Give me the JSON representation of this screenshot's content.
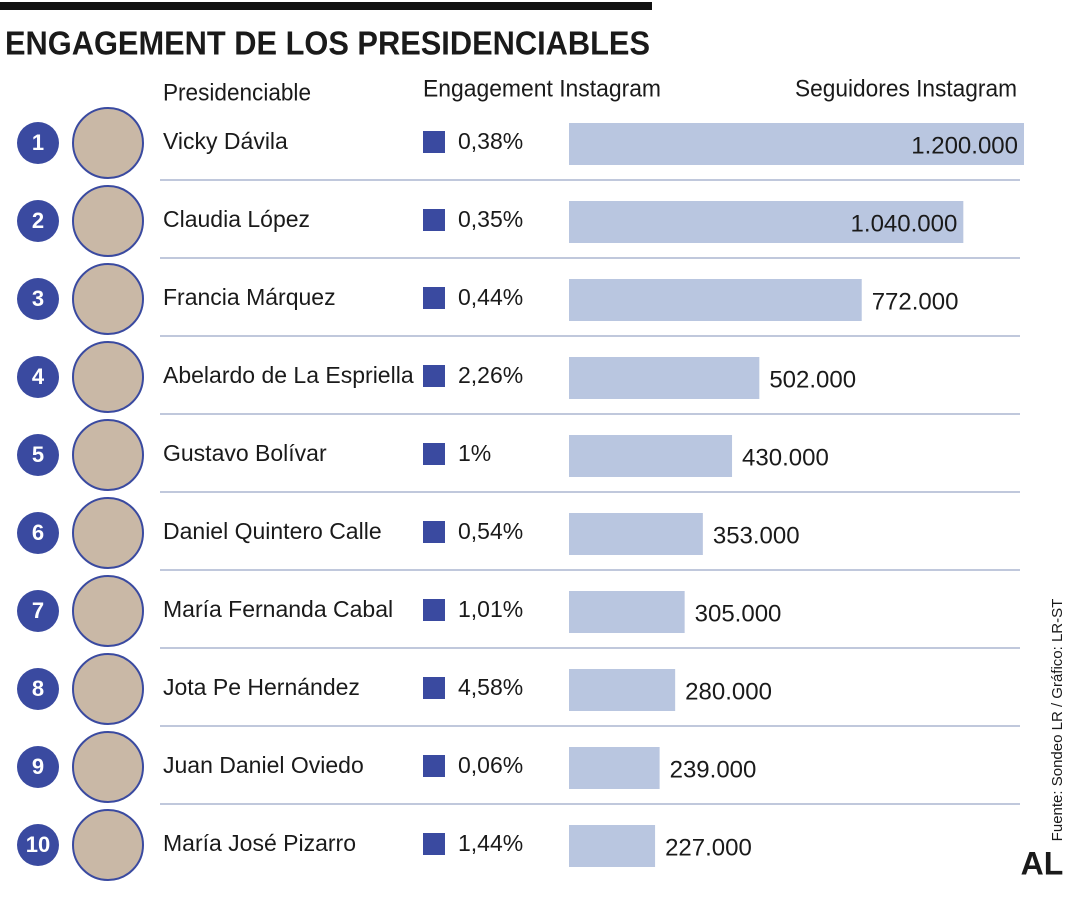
{
  "chart_data": {
    "type": "bar",
    "title": "ENGAGEMENT DE LOS PRESIDENCIABLES",
    "column_headers": [
      "Presidenciable",
      "Engagement Instagram",
      "Seguidores Instagram"
    ],
    "ranks": [
      1,
      2,
      3,
      4,
      5,
      6,
      7,
      8,
      9,
      10
    ],
    "categories": [
      "Vicky Dávila",
      "Claudia López",
      "Francia Márquez",
      "Abelardo de La Espriella",
      "Gustavo Bolívar",
      "Daniel Quintero Calle",
      "María Fernanda Cabal",
      "Jota Pe Hernández",
      "Juan Daniel Oviedo",
      "María José Pizarro"
    ],
    "engagement": [
      "0,38%",
      "0,35%",
      "0,44%",
      "2,26%",
      "1%",
      "0,54%",
      "1,01%",
      "4,58%",
      "0,06%",
      "1,44%"
    ],
    "values": [
      1200000,
      1040000,
      772000,
      502000,
      430000,
      353000,
      305000,
      280000,
      239000,
      227000
    ],
    "value_labels": [
      "1.200.000",
      "1.040.000",
      "772.000",
      "502.000",
      "430.000",
      "353.000",
      "305.000",
      "280.000",
      "239.000",
      "227.000"
    ],
    "color": "#b9c6e0",
    "accent_color": "#3a4aa0",
    "source": "Fuente: Sondeo LR / Gráfico: LR-ST",
    "logo": "AL"
  }
}
